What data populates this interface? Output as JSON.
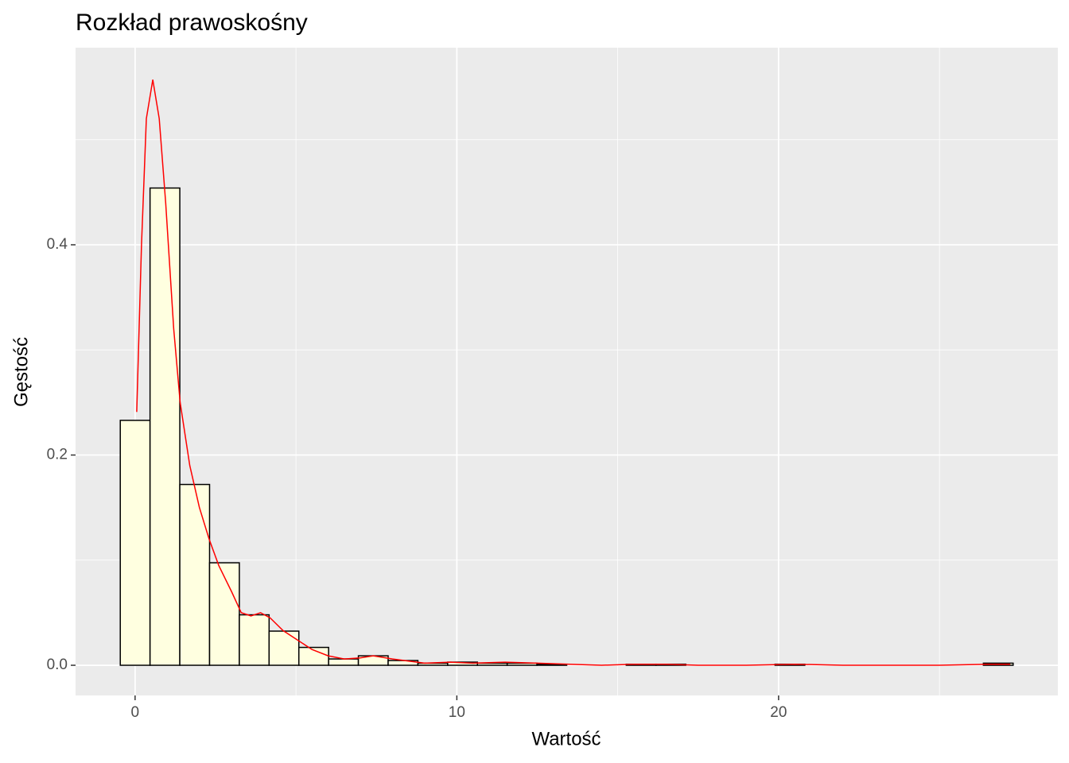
{
  "chart_data": {
    "type": "histogram",
    "title": "Rozkład prawoskośny",
    "x_label": "Wartość",
    "y_label": "Gęstość",
    "bins": [
      -0.46,
      0.465,
      1.39,
      2.315,
      3.24,
      4.165,
      5.09,
      6.015,
      6.94,
      7.865,
      8.79,
      9.715,
      10.64,
      11.565,
      12.49,
      13.415,
      14.34,
      15.265,
      16.19,
      17.115,
      18.04,
      18.965,
      19.89,
      20.815,
      21.74,
      22.665,
      23.59,
      24.515,
      25.44,
      26.365,
      27.29
    ],
    "values": [
      0.233,
      0.454,
      0.172,
      0.0975,
      0.048,
      0.0325,
      0.017,
      0.006,
      0.009,
      0.0045,
      0.002,
      0.003,
      0.002,
      0.002,
      0.001,
      0,
      0,
      0.001,
      0.001,
      0,
      0,
      0,
      0.001,
      0,
      0,
      0,
      0,
      0,
      0,
      0.002
    ],
    "fill": "#ffffe0",
    "edge_color": "#000000",
    "density": {
      "color": "#ff0000",
      "x": [
        0.05,
        0.2,
        0.35,
        0.55,
        0.75,
        0.95,
        1.2,
        1.4,
        1.7,
        2.0,
        2.3,
        2.6,
        3.0,
        3.3,
        3.6,
        3.9,
        4.2,
        4.6,
        5.0,
        5.5,
        6.0,
        6.5,
        7.0,
        7.4,
        8.0,
        8.5,
        9.0,
        9.8,
        10.5,
        11.5,
        12.5,
        13.5,
        14.5,
        15.5,
        16.5,
        17.5,
        19,
        20.5,
        22,
        25,
        26.5,
        27.2
      ],
      "y": [
        0.241,
        0.4,
        0.52,
        0.557,
        0.52,
        0.44,
        0.32,
        0.25,
        0.19,
        0.15,
        0.12,
        0.095,
        0.07,
        0.05,
        0.047,
        0.05,
        0.045,
        0.033,
        0.025,
        0.015,
        0.009,
        0.006,
        0.007,
        0.009,
        0.006,
        0.004,
        0.002,
        0.003,
        0.002,
        0.003,
        0.002,
        0.001,
        0,
        0.001,
        0.001,
        0,
        0,
        0.001,
        0,
        0,
        0.001,
        0.001
      ]
    },
    "xlim": [
      -1.85,
      28.68
    ],
    "ylim": [
      -0.0287,
      0.5875
    ],
    "xticks": [
      0,
      10,
      20
    ],
    "yticks": [
      {
        "value": 0,
        "label": "0.0"
      },
      {
        "value": 0.2,
        "label": "0.2"
      },
      {
        "value": 0.4,
        "label": "0.4"
      }
    ],
    "x_minor_ticks": [
      5,
      15,
      25
    ],
    "y_minor_ticks": [
      0.1,
      0.3,
      0.5
    ],
    "grid": true
  }
}
